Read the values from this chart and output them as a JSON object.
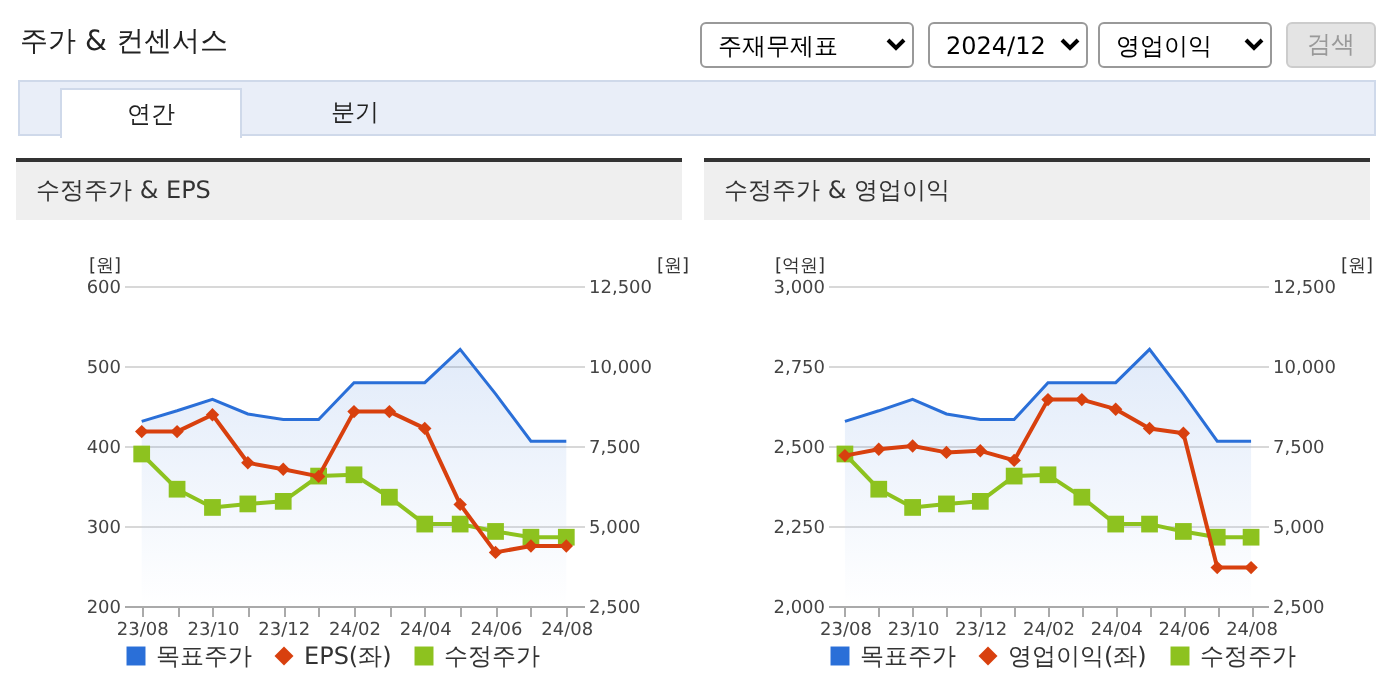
{
  "chart_data": [
    {
      "type": "other",
      "title": "주가 & 컨센서스",
      "annotations": [
        "주재무제표",
        "2024/12",
        "영업이익",
        "검색",
        "연간",
        "분기"
      ]
    },
    {
      "type": "line",
      "title": "수정주가 & EPS",
      "categories": [
        "23/08",
        null,
        "23/10",
        null,
        "23/12",
        null,
        "24/02",
        null,
        "24/04",
        null,
        "24/06",
        null,
        "24/08"
      ],
      "ylabel": "[원]",
      "y2label": "[원]",
      "ylim": [
        200,
        600
      ],
      "yticks": [
        200,
        300,
        400,
        500,
        600
      ],
      "y2lim": [
        2500,
        12500
      ],
      "y2ticks": [
        {
          "value": 2500,
          "label": "2,500"
        },
        {
          "value": 5000,
          "label": "5,000"
        },
        {
          "value": 7500,
          "label": "7,500"
        },
        {
          "value": 10000,
          "label": "10,000"
        },
        {
          "value": 12500,
          "label": "12,500"
        }
      ],
      "grid": "y",
      "legend": "bottom",
      "series": [
        {
          "name": "목표주가",
          "type": "area",
          "axis": "y2",
          "color": "#2a6fd8",
          "marker": "none",
          "values": [
            8270,
            8600,
            8960,
            8500,
            8330,
            8330,
            9480,
            9480,
            9480,
            10520,
            9130,
            7650,
            7650
          ]
        },
        {
          "name": "EPS(좌)",
          "type": "line",
          "color": "#d8400e",
          "marker": "diamond",
          "values": [
            418,
            418,
            439,
            379,
            371,
            362,
            443,
            443,
            422,
            327,
            267,
            275,
            275
          ]
        },
        {
          "name": "수정주가",
          "type": "line",
          "axis": "y2",
          "color": "#8dc21f",
          "marker": "square",
          "values": [
            7250,
            6150,
            5580,
            5690,
            5770,
            6560,
            6600,
            5900,
            5060,
            5060,
            4830,
            4650,
            4650
          ]
        }
      ]
    },
    {
      "type": "line",
      "title": "수정주가 & 영업이익",
      "categories": [
        "23/08",
        null,
        "23/10",
        null,
        "23/12",
        null,
        "24/02",
        null,
        "24/04",
        null,
        "24/06",
        null,
        "24/08"
      ],
      "ylabel": "[억원]",
      "y2label": "[원]",
      "ylim": [
        2000,
        3000
      ],
      "yticks": [
        {
          "value": 2000,
          "label": "2,000"
        },
        {
          "value": 2250,
          "label": "2,250"
        },
        {
          "value": 2500,
          "label": "2,500"
        },
        {
          "value": 2750,
          "label": "2,750"
        },
        {
          "value": 3000,
          "label": "3,000"
        }
      ],
      "y2lim": [
        2500,
        12500
      ],
      "y2ticks": [
        {
          "value": 2500,
          "label": "2,500"
        },
        {
          "value": 5000,
          "label": "5,000"
        },
        {
          "value": 7500,
          "label": "7,500"
        },
        {
          "value": 10000,
          "label": "10,000"
        },
        {
          "value": 12500,
          "label": "12,500"
        }
      ],
      "grid": "y",
      "legend": "bottom",
      "series": [
        {
          "name": "목표주가",
          "type": "area",
          "axis": "y2",
          "color": "#2a6fd8",
          "marker": "none",
          "values": [
            8270,
            8600,
            8960,
            8500,
            8330,
            8330,
            9480,
            9480,
            9480,
            10520,
            9130,
            7650,
            7650
          ]
        },
        {
          "name": "영업이익(좌)",
          "type": "line",
          "color": "#d8400e",
          "marker": "diamond",
          "values": [
            2470,
            2490,
            2500,
            2480,
            2485,
            2455,
            2645,
            2645,
            2615,
            2555,
            2540,
            2120,
            2120
          ]
        },
        {
          "name": "수정주가",
          "type": "line",
          "axis": "y2",
          "color": "#8dc21f",
          "marker": "square",
          "values": [
            7250,
            6150,
            5580,
            5690,
            5770,
            6560,
            6600,
            5900,
            5060,
            5060,
            4830,
            4650,
            4650
          ]
        }
      ]
    }
  ]
}
